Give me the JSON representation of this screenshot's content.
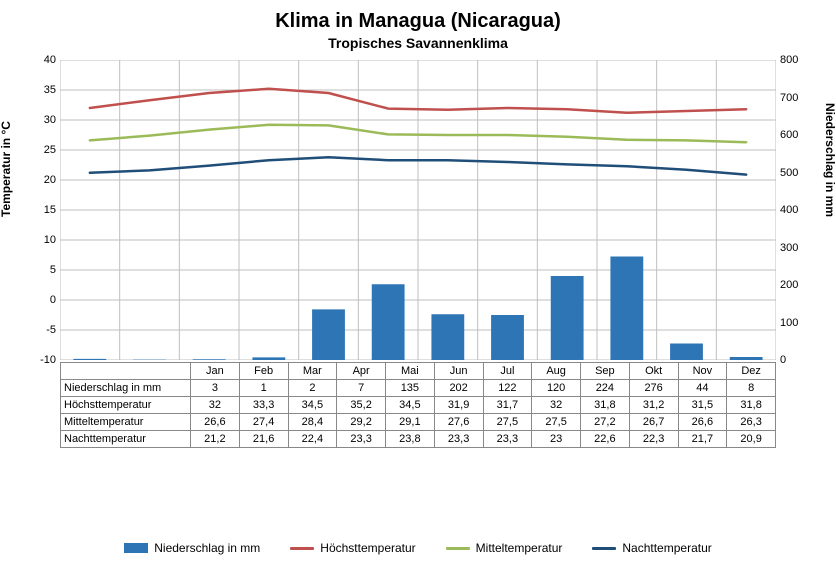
{
  "title": "Klima in Managua (Nicaragua)",
  "subtitle": "Tropisches Savannenklima",
  "months": [
    "Jan",
    "Feb",
    "Mar",
    "Apr",
    "Mai",
    "Jun",
    "Jul",
    "Aug",
    "Sep",
    "Okt",
    "Nov",
    "Dez"
  ],
  "rows": {
    "precip_label": "Niederschlag in mm",
    "high_label": "Höchsttemperatur",
    "mean_label": "Mitteltemperatur",
    "low_label": "Nachttemperatur"
  },
  "precip": [
    3,
    1,
    2,
    7,
    135,
    202,
    122,
    120,
    224,
    276,
    44,
    8
  ],
  "high": [
    32.0,
    33.3,
    34.5,
    35.2,
    34.5,
    31.9,
    31.7,
    32.0,
    31.8,
    31.2,
    31.5,
    31.8
  ],
  "mean": [
    26.6,
    27.4,
    28.4,
    29.2,
    29.1,
    27.6,
    27.5,
    27.5,
    27.2,
    26.7,
    26.6,
    26.3
  ],
  "low": [
    21.2,
    21.6,
    22.4,
    23.3,
    23.8,
    23.3,
    23.3,
    23.0,
    22.6,
    22.3,
    21.7,
    20.9
  ],
  "axes": {
    "left_label": "Temperatur in °C",
    "right_label": "Niederschlag in mm",
    "left_min": -10,
    "left_max": 40,
    "left_step": 5,
    "right_min": 0,
    "right_max": 800,
    "right_step": 100
  },
  "colors": {
    "bar": "#2e75b6",
    "high": "#c0504d",
    "mean": "#9bbb59",
    "low": "#1f4e79",
    "grid": "#bfbfbf",
    "bg": "#ffffff"
  },
  "style": {
    "line_width": 2.5,
    "bar_width_ratio": 0.55,
    "title_fontsize": 20,
    "subtitle_fontsize": 14
  },
  "legend": {
    "precip": "Niederschlag in mm",
    "high": "Höchsttemperatur",
    "mean": "Mitteltemperatur",
    "low": "Nachttemperatur"
  }
}
